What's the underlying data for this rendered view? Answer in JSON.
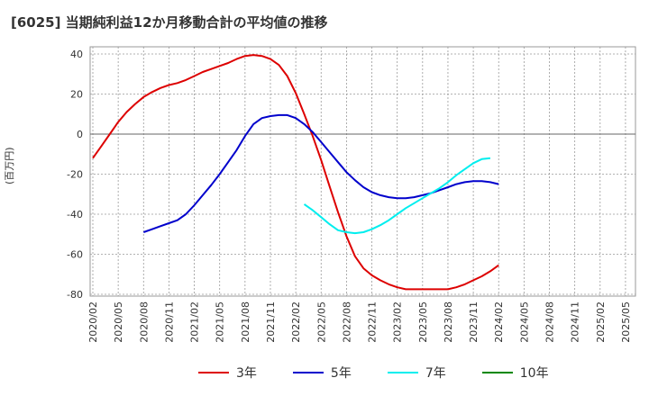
{
  "chart_data": {
    "type": "line",
    "title": "[6025]  当期純利益12か月移動合計の平均値の推移",
    "ylabel": "(百万円)",
    "xlabel": "",
    "ylim": [
      -80,
      40
    ],
    "yticks": [
      40,
      20,
      0,
      -20,
      -40,
      -60,
      -80
    ],
    "xticks": [
      "2020/02",
      "2020/05",
      "2020/08",
      "2020/11",
      "2021/02",
      "2021/05",
      "2021/08",
      "2021/11",
      "2022/02",
      "2022/05",
      "2022/08",
      "2022/11",
      "2023/02",
      "2023/05",
      "2023/08",
      "2023/11",
      "2024/02",
      "2024/05",
      "2024/08",
      "2024/11",
      "2025/02",
      "2025/05"
    ],
    "grid": true,
    "legend_position": "bottom",
    "series": [
      {
        "name": "3年",
        "color": "#dd0000",
        "values": [
          [
            0,
            -12
          ],
          [
            1,
            -6
          ],
          [
            2,
            0
          ],
          [
            3,
            6
          ],
          [
            4,
            11
          ],
          [
            5,
            15
          ],
          [
            6,
            18.5
          ],
          [
            7,
            21
          ],
          [
            8,
            23
          ],
          [
            9,
            24.5
          ],
          [
            10,
            25.5
          ],
          [
            11,
            27
          ],
          [
            12,
            29
          ],
          [
            13,
            31
          ],
          [
            14,
            32.5
          ],
          [
            15,
            34
          ],
          [
            16,
            35.5
          ],
          [
            17,
            37.5
          ],
          [
            18,
            39
          ],
          [
            19,
            39.5
          ],
          [
            20,
            39
          ],
          [
            21,
            37.5
          ],
          [
            22,
            34.5
          ],
          [
            23,
            29
          ],
          [
            24,
            20.5
          ],
          [
            25,
            10
          ],
          [
            26,
            -1
          ],
          [
            27,
            -13
          ],
          [
            28,
            -26
          ],
          [
            29,
            -39
          ],
          [
            30,
            -51
          ],
          [
            31,
            -61
          ],
          [
            32,
            -67
          ],
          [
            33,
            -70.5
          ],
          [
            34,
            -73
          ],
          [
            35,
            -75
          ],
          [
            36,
            -76.5
          ],
          [
            37,
            -77.5
          ],
          [
            38,
            -77.5
          ],
          [
            39,
            -77.5
          ],
          [
            40,
            -77.5
          ],
          [
            41,
            -77.5
          ],
          [
            42,
            -77.5
          ],
          [
            43,
            -76.5
          ],
          [
            44,
            -75
          ],
          [
            45,
            -73
          ],
          [
            46,
            -71
          ],
          [
            47,
            -68.5
          ],
          [
            48,
            -65.5
          ]
        ]
      },
      {
        "name": "5年",
        "color": "#0000cc",
        "values": [
          [
            6,
            -49
          ],
          [
            7,
            -47.5
          ],
          [
            8,
            -46
          ],
          [
            9,
            -44.5
          ],
          [
            10,
            -43
          ],
          [
            11,
            -40
          ],
          [
            12,
            -35.5
          ],
          [
            13,
            -30.5
          ],
          [
            14,
            -25.5
          ],
          [
            15,
            -20
          ],
          [
            16,
            -14
          ],
          [
            17,
            -8
          ],
          [
            18,
            -1
          ],
          [
            19,
            5
          ],
          [
            20,
            8
          ],
          [
            21,
            9
          ],
          [
            22,
            9.5
          ],
          [
            23,
            9.5
          ],
          [
            24,
            8
          ],
          [
            25,
            5
          ],
          [
            26,
            1
          ],
          [
            27,
            -4
          ],
          [
            28,
            -9
          ],
          [
            29,
            -14
          ],
          [
            30,
            -19
          ],
          [
            31,
            -23
          ],
          [
            32,
            -26.5
          ],
          [
            33,
            -29
          ],
          [
            34,
            -30.5
          ],
          [
            35,
            -31.5
          ],
          [
            36,
            -32
          ],
          [
            37,
            -32
          ],
          [
            38,
            -31.5
          ],
          [
            39,
            -30.5
          ],
          [
            40,
            -29.5
          ],
          [
            41,
            -28
          ],
          [
            42,
            -26.5
          ],
          [
            43,
            -25
          ],
          [
            44,
            -24
          ],
          [
            45,
            -23.5
          ],
          [
            46,
            -23.5
          ],
          [
            47,
            -24
          ],
          [
            48,
            -25
          ]
        ]
      },
      {
        "name": "7年",
        "color": "#00eeee",
        "values": [
          [
            25,
            -35
          ],
          [
            26,
            -38
          ],
          [
            27,
            -41.5
          ],
          [
            28,
            -45
          ],
          [
            29,
            -48
          ],
          [
            30,
            -49
          ],
          [
            31,
            -49.5
          ],
          [
            32,
            -49
          ],
          [
            33,
            -47.5
          ],
          [
            34,
            -45.5
          ],
          [
            35,
            -43
          ],
          [
            36,
            -40
          ],
          [
            37,
            -37
          ],
          [
            38,
            -34.5
          ],
          [
            39,
            -32
          ],
          [
            40,
            -29.5
          ],
          [
            41,
            -27
          ],
          [
            42,
            -24
          ],
          [
            43,
            -20.5
          ],
          [
            44,
            -17.5
          ],
          [
            45,
            -14.5
          ],
          [
            46,
            -12.5
          ],
          [
            47,
            -12
          ]
        ]
      },
      {
        "name": "10年",
        "color": "#008800",
        "values": []
      }
    ]
  }
}
